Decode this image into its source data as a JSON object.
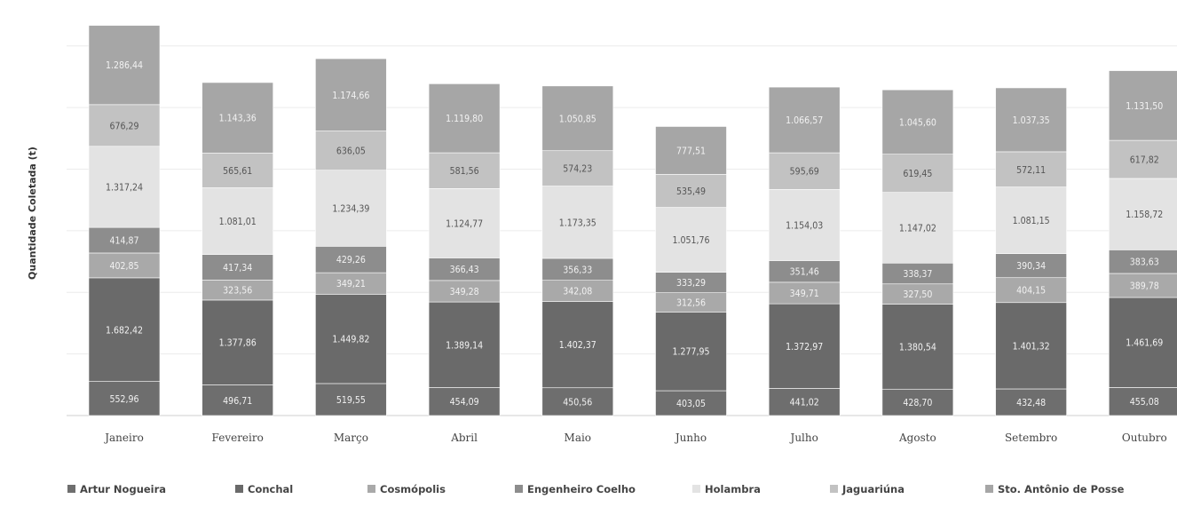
{
  "chart_data": {
    "type": "bar",
    "stacked": true,
    "ylabel": "Quantidade Coletada (t)",
    "ylim": [
      0,
      7000
    ],
    "grid": true,
    "legend_position": "bottom",
    "categories": [
      "Janeiro",
      "Fevereiro",
      "Março",
      "Abril",
      "Maio",
      "Junho",
      "Julho",
      "Agosto",
      "Setembro",
      "Outubro"
    ],
    "series": [
      {
        "name": "Artur Nogueira",
        "color": "#6e6e6e",
        "values": [
          552.96,
          496.71,
          519.55,
          454.09,
          450.56,
          403.05,
          441.02,
          428.7,
          432.48,
          455.08
        ],
        "labels": [
          "552,96",
          "496,71",
          "519,55",
          "454,09",
          "450,56",
          "403,05",
          "441,02",
          "428,70",
          "432,48",
          "455,08"
        ]
      },
      {
        "name": "Conchal",
        "color": "#6a6a6a",
        "values": [
          1682.42,
          1377.86,
          1449.82,
          1389.14,
          1402.37,
          1277.95,
          1372.97,
          1380.54,
          1401.32,
          1461.69
        ],
        "labels": [
          "1.682,42",
          "1.377,86",
          "1.449,82",
          "1.389,14",
          "1.402,37",
          "1.277,95",
          "1.372,97",
          "1.380,54",
          "1.401,32",
          "1.461,69"
        ]
      },
      {
        "name": "Cosmópolis",
        "color": "#a9a9a9",
        "values": [
          402.85,
          323.56,
          349.21,
          349.28,
          342.08,
          312.56,
          349.71,
          327.5,
          404.15,
          389.78
        ],
        "labels": [
          "402,85",
          "323,56",
          "349,21",
          "349,28",
          "342,08",
          "312,56",
          "349,71",
          "327,50",
          "404,15",
          "389,78"
        ]
      },
      {
        "name": "Engenheiro Coelho",
        "color": "#8d8d8d",
        "values": [
          414.87,
          417.34,
          429.26,
          366.43,
          356.33,
          333.29,
          351.46,
          338.37,
          390.34,
          383.63
        ],
        "labels": [
          "414,87",
          "417,34",
          "429,26",
          "366,43",
          "356,33",
          "333,29",
          "351,46",
          "338,37",
          "390,34",
          "383,63"
        ]
      },
      {
        "name": "Holambra",
        "color": "#e3e3e3",
        "values": [
          1317.24,
          1081.01,
          1234.39,
          1124.77,
          1173.35,
          1051.76,
          1154.03,
          1147.02,
          1081.15,
          1158.72
        ],
        "labels": [
          "1.317,24",
          "1.081,01",
          "1.234,39",
          "1.124,77",
          "1.173,35",
          "1.051,76",
          "1.154,03",
          "1.147,02",
          "1.081,15",
          "1.158,72"
        ]
      },
      {
        "name": "Jaguariúna",
        "color": "#c2c2c2",
        "values": [
          676.29,
          565.61,
          636.05,
          581.56,
          574.23,
          535.49,
          595.69,
          619.45,
          572.11,
          617.82
        ],
        "labels": [
          "676,29",
          "565,61",
          "636,05",
          "581,56",
          "574,23",
          "535,49",
          "595,69",
          "619,45",
          "572,11",
          "617,82"
        ]
      },
      {
        "name": "Sto. Antônio de Posse",
        "color": "#a6a6a6",
        "values": [
          1286.44,
          1143.36,
          1174.66,
          1119.8,
          1050.85,
          777.51,
          1066.57,
          1045.6,
          1037.35,
          1131.5
        ],
        "labels": [
          "1.286,44",
          "1.143,36",
          "1.174,66",
          "1.119,80",
          "1.050,85",
          "777,51",
          "1.066,57",
          "1.045,60",
          "1.037,35",
          "1.131,50"
        ]
      }
    ]
  }
}
